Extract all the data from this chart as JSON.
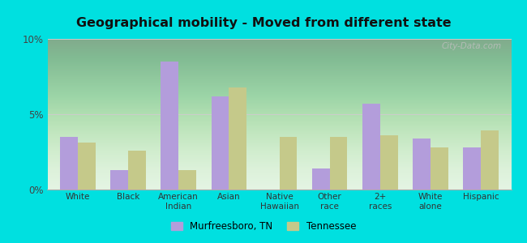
{
  "title": "Geographical mobility - Moved from different state",
  "categories": [
    "White",
    "Black",
    "American\nIndian",
    "Asian",
    "Native\nHawaiian",
    "Other\nrace",
    "2+\nraces",
    "White\nalone",
    "Hispanic"
  ],
  "murfreesboro": [
    3.5,
    1.3,
    8.5,
    6.2,
    0.0,
    1.4,
    5.7,
    3.4,
    2.8
  ],
  "tennessee": [
    3.1,
    2.6,
    1.3,
    6.8,
    3.5,
    3.5,
    3.6,
    2.8,
    3.9
  ],
  "murfreesboro_color": "#b39ddb",
  "tennessee_color": "#c5c98a",
  "outer_background": "#00e0e0",
  "ylim": [
    0,
    10
  ],
  "yticks": [
    0,
    5,
    10
  ],
  "ytick_labels": [
    "0%",
    "5%",
    "10%"
  ],
  "bar_width": 0.35,
  "legend_murfreesboro": "Murfreesboro, TN",
  "legend_tennessee": "Tennessee"
}
